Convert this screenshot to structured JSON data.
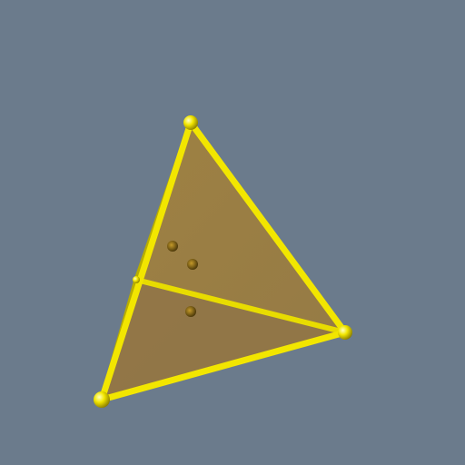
{
  "scene": {
    "background_color": "#6b7b8c",
    "object": "tetrahedron",
    "edge_color": "#f2e600",
    "face_color": "#9c7e3e",
    "vertex_count": 4,
    "visible_vertex_count": 4,
    "visible_edge_count": 6,
    "interior_point_count": 3
  }
}
